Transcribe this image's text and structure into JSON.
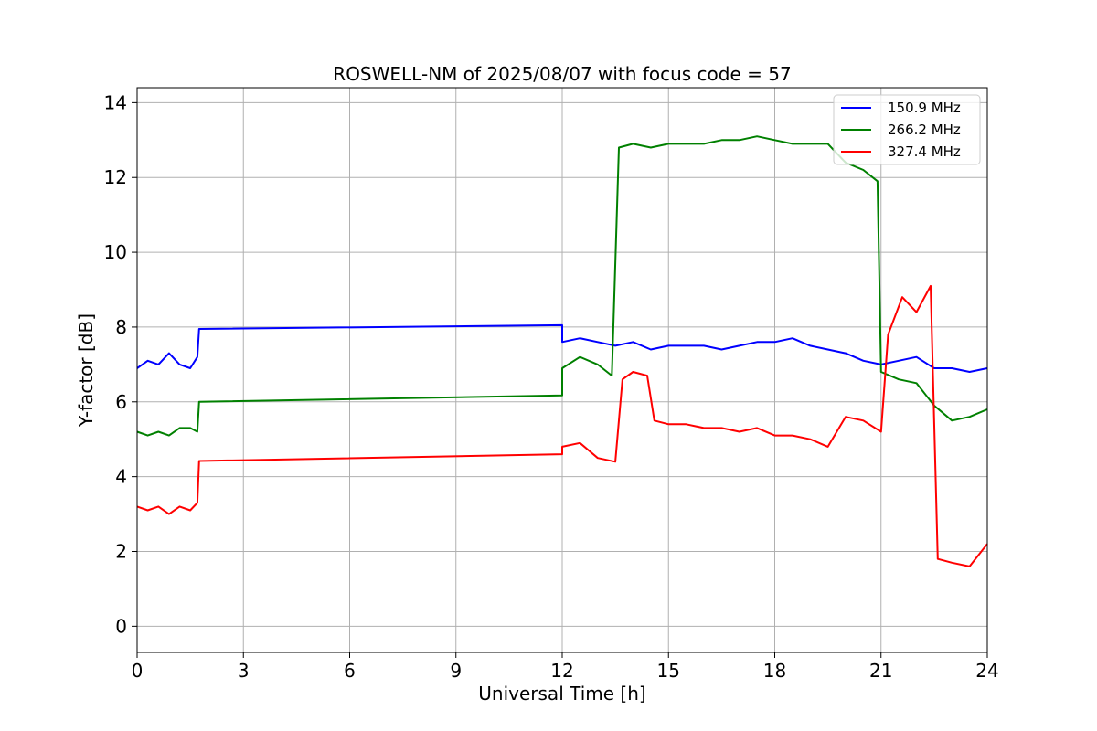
{
  "chart_data": {
    "type": "line",
    "title": "ROSWELL-NM of 2025/08/07 with focus code = 57",
    "xlabel": "Universal Time [h]",
    "ylabel": "Y-factor [dB]",
    "xlim": [
      0,
      24
    ],
    "ylim": [
      -0.7,
      14.4
    ],
    "xticks": [
      0,
      3,
      6,
      9,
      12,
      15,
      18,
      21,
      24
    ],
    "yticks": [
      0,
      2,
      4,
      6,
      8,
      10,
      12,
      14
    ],
    "grid": true,
    "legend_position": "top-right",
    "series": [
      {
        "name": "150.9 MHz",
        "color": "#0000ff",
        "points": [
          [
            0.0,
            6.9
          ],
          [
            0.3,
            7.1
          ],
          [
            0.6,
            7.0
          ],
          [
            0.9,
            7.3
          ],
          [
            1.2,
            7.0
          ],
          [
            1.5,
            6.9
          ],
          [
            1.7,
            7.2
          ],
          [
            1.75,
            7.95
          ],
          [
            12.0,
            8.05
          ],
          [
            12.0,
            7.6
          ],
          [
            12.5,
            7.7
          ],
          [
            13.0,
            7.6
          ],
          [
            13.5,
            7.5
          ],
          [
            14.0,
            7.6
          ],
          [
            14.5,
            7.4
          ],
          [
            15.0,
            7.5
          ],
          [
            15.5,
            7.5
          ],
          [
            16.0,
            7.5
          ],
          [
            16.5,
            7.4
          ],
          [
            17.0,
            7.5
          ],
          [
            17.5,
            7.6
          ],
          [
            18.0,
            7.6
          ],
          [
            18.5,
            7.7
          ],
          [
            19.0,
            7.5
          ],
          [
            19.5,
            7.4
          ],
          [
            20.0,
            7.3
          ],
          [
            20.5,
            7.1
          ],
          [
            21.0,
            7.0
          ],
          [
            21.5,
            7.1
          ],
          [
            22.0,
            7.2
          ],
          [
            22.5,
            6.9
          ],
          [
            23.0,
            6.9
          ],
          [
            23.5,
            6.8
          ],
          [
            24.0,
            6.9
          ]
        ]
      },
      {
        "name": "266.2 MHz",
        "color": "#008000",
        "points": [
          [
            0.0,
            5.2
          ],
          [
            0.3,
            5.1
          ],
          [
            0.6,
            5.2
          ],
          [
            0.9,
            5.1
          ],
          [
            1.2,
            5.3
          ],
          [
            1.5,
            5.3
          ],
          [
            1.7,
            5.2
          ],
          [
            1.75,
            6.0
          ],
          [
            12.0,
            6.17
          ],
          [
            12.0,
            6.9
          ],
          [
            12.5,
            7.2
          ],
          [
            13.0,
            7.0
          ],
          [
            13.4,
            6.7
          ],
          [
            13.6,
            12.8
          ],
          [
            14.0,
            12.9
          ],
          [
            14.5,
            12.8
          ],
          [
            15.0,
            12.9
          ],
          [
            15.5,
            12.9
          ],
          [
            16.0,
            12.9
          ],
          [
            16.5,
            13.0
          ],
          [
            17.0,
            13.0
          ],
          [
            17.5,
            13.1
          ],
          [
            18.0,
            13.0
          ],
          [
            18.5,
            12.9
          ],
          [
            19.0,
            12.9
          ],
          [
            19.5,
            12.9
          ],
          [
            20.0,
            12.4
          ],
          [
            20.5,
            12.2
          ],
          [
            20.9,
            11.9
          ],
          [
            21.0,
            6.8
          ],
          [
            21.5,
            6.6
          ],
          [
            22.0,
            6.5
          ],
          [
            22.5,
            5.9
          ],
          [
            23.0,
            5.5
          ],
          [
            23.5,
            5.6
          ],
          [
            24.0,
            5.8
          ]
        ]
      },
      {
        "name": "327.4 MHz",
        "color": "#ff0000",
        "points": [
          [
            0.0,
            3.2
          ],
          [
            0.3,
            3.1
          ],
          [
            0.6,
            3.2
          ],
          [
            0.9,
            3.0
          ],
          [
            1.2,
            3.2
          ],
          [
            1.5,
            3.1
          ],
          [
            1.7,
            3.3
          ],
          [
            1.75,
            4.42
          ],
          [
            12.0,
            4.6
          ],
          [
            12.0,
            4.8
          ],
          [
            12.5,
            4.9
          ],
          [
            13.0,
            4.5
          ],
          [
            13.5,
            4.4
          ],
          [
            13.7,
            6.6
          ],
          [
            14.0,
            6.8
          ],
          [
            14.4,
            6.7
          ],
          [
            14.6,
            5.5
          ],
          [
            15.0,
            5.4
          ],
          [
            15.5,
            5.4
          ],
          [
            16.0,
            5.3
          ],
          [
            16.5,
            5.3
          ],
          [
            17.0,
            5.2
          ],
          [
            17.5,
            5.3
          ],
          [
            18.0,
            5.1
          ],
          [
            18.5,
            5.1
          ],
          [
            19.0,
            5.0
          ],
          [
            19.5,
            4.8
          ],
          [
            20.0,
            5.6
          ],
          [
            20.5,
            5.5
          ],
          [
            21.0,
            5.2
          ],
          [
            21.2,
            7.8
          ],
          [
            21.6,
            8.8
          ],
          [
            22.0,
            8.4
          ],
          [
            22.4,
            9.1
          ],
          [
            22.6,
            1.8
          ],
          [
            23.0,
            1.7
          ],
          [
            23.5,
            1.6
          ],
          [
            24.0,
            2.2
          ]
        ]
      }
    ]
  }
}
